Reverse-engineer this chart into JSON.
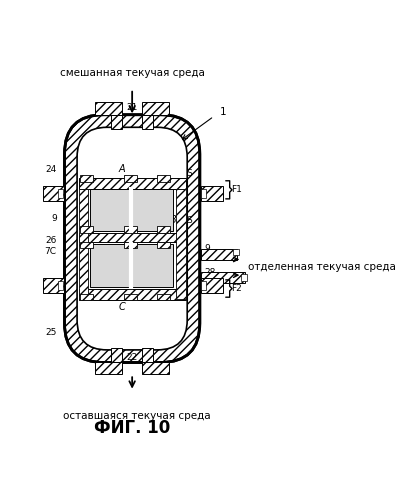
{
  "title": "ФИГ. 10",
  "top_label": "смешанная текучая среда",
  "bottom_label": "оставшаяся текучая среда",
  "right_label": "отделенная текучая среда",
  "bg_color": "#ffffff",
  "line_color": "#000000"
}
